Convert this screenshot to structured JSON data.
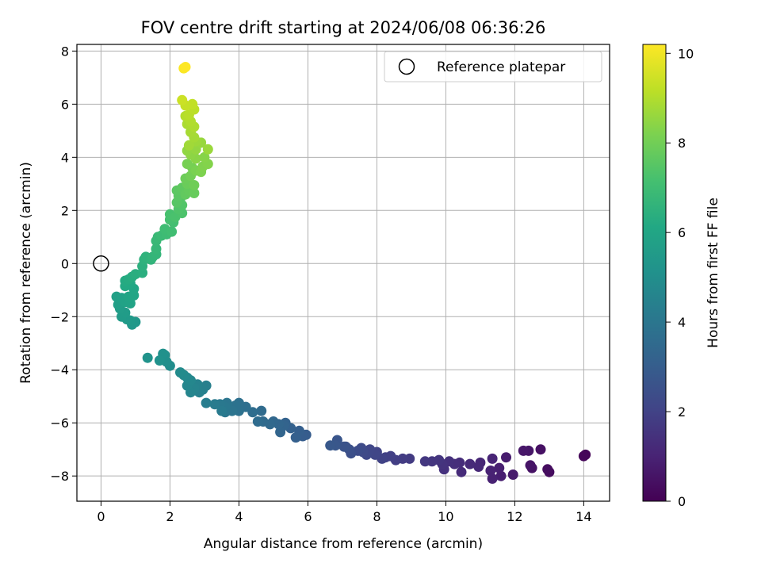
{
  "chart_data": {
    "type": "scatter",
    "title": "FOV centre drift starting at 2024/06/08 06:36:26",
    "xlabel": "Angular distance from reference (arcmin)",
    "ylabel": "Rotation from reference (arcmin)",
    "colorbar_label": "Hours from first FF file",
    "xlim": [
      -0.7,
      14.75
    ],
    "ylim": [
      -8.95,
      8.25
    ],
    "clim": [
      0,
      10.2
    ],
    "colormap": "viridis",
    "xticks": [
      "0",
      "2",
      "4",
      "6",
      "8",
      "10",
      "12",
      "14"
    ],
    "yticks": [
      "−8",
      "−6",
      "−4",
      "−2",
      "0",
      "2",
      "4",
      "6",
      "8"
    ],
    "cbar_ticks": [
      "0",
      "2",
      "4",
      "6",
      "8",
      "10"
    ],
    "grid": true,
    "legend": {
      "placement": "top-right",
      "entries": [
        "Reference platepar"
      ]
    },
    "reference_point": {
      "x": 0,
      "y": 0,
      "label": "Reference platepar"
    },
    "points": [
      [
        14.05,
        -7.2,
        0.1
      ],
      [
        14.0,
        -7.25,
        0.15
      ],
      [
        13.0,
        -7.85,
        0.3
      ],
      [
        12.95,
        -7.75,
        0.35
      ],
      [
        12.75,
        -7.0,
        0.45
      ],
      [
        12.5,
        -7.7,
        0.5
      ],
      [
        12.45,
        -7.6,
        0.55
      ],
      [
        12.4,
        -7.05,
        0.6
      ],
      [
        12.25,
        -7.05,
        0.65
      ],
      [
        11.95,
        -7.95,
        0.75
      ],
      [
        11.75,
        -7.3,
        0.8
      ],
      [
        11.6,
        -8.0,
        0.85
      ],
      [
        11.55,
        -7.7,
        0.9
      ],
      [
        11.35,
        -8.1,
        0.95
      ],
      [
        11.3,
        -7.8,
        1.0
      ],
      [
        11.35,
        -7.35,
        1.05
      ],
      [
        11.0,
        -7.5,
        1.1
      ],
      [
        10.95,
        -7.65,
        1.15
      ],
      [
        10.7,
        -7.55,
        1.2
      ],
      [
        10.45,
        -7.85,
        1.25
      ],
      [
        10.4,
        -7.5,
        1.3
      ],
      [
        10.25,
        -7.55,
        1.35
      ],
      [
        10.1,
        -7.45,
        1.4
      ],
      [
        9.95,
        -7.75,
        1.45
      ],
      [
        9.9,
        -7.55,
        1.5
      ],
      [
        9.8,
        -7.4,
        1.55
      ],
      [
        9.6,
        -7.45,
        1.6
      ],
      [
        9.4,
        -7.45,
        1.65
      ],
      [
        8.95,
        -7.35,
        1.75
      ],
      [
        8.75,
        -7.35,
        1.8
      ],
      [
        8.55,
        -7.4,
        1.85
      ],
      [
        8.4,
        -7.25,
        1.9
      ],
      [
        8.25,
        -7.3,
        1.95
      ],
      [
        8.15,
        -7.35,
        2.0
      ],
      [
        8.0,
        -7.1,
        2.05
      ],
      [
        7.95,
        -7.2,
        2.1
      ],
      [
        7.8,
        -7.0,
        2.15
      ],
      [
        7.7,
        -7.2,
        2.2
      ],
      [
        7.6,
        -7.1,
        2.25
      ],
      [
        7.55,
        -6.95,
        2.3
      ],
      [
        7.45,
        -7.05,
        2.35
      ],
      [
        7.25,
        -7.15,
        2.45
      ],
      [
        7.2,
        -7.0,
        2.5
      ],
      [
        7.1,
        -6.9,
        2.55
      ],
      [
        7.05,
        -6.9,
        2.6
      ],
      [
        6.85,
        -6.65,
        2.7
      ],
      [
        6.8,
        -6.85,
        2.75
      ],
      [
        6.65,
        -6.85,
        2.8
      ],
      [
        5.95,
        -6.45,
        2.95
      ],
      [
        5.85,
        -6.5,
        3.0
      ],
      [
        5.75,
        -6.3,
        3.05
      ],
      [
        5.65,
        -6.55,
        3.1
      ],
      [
        5.5,
        -6.2,
        3.15
      ],
      [
        5.35,
        -6.0,
        3.2
      ],
      [
        5.3,
        -6.1,
        3.25
      ],
      [
        5.2,
        -6.35,
        3.3
      ],
      [
        5.15,
        -6.05,
        3.35
      ],
      [
        5.0,
        -5.95,
        3.4
      ],
      [
        4.9,
        -6.05,
        3.45
      ],
      [
        4.7,
        -5.95,
        3.5
      ],
      [
        4.65,
        -5.55,
        3.55
      ],
      [
        4.55,
        -5.95,
        3.6
      ],
      [
        4.4,
        -5.6,
        3.65
      ],
      [
        4.2,
        -5.4,
        3.7
      ],
      [
        4.0,
        -5.25,
        3.75
      ],
      [
        4.0,
        -5.55,
        3.8
      ],
      [
        3.9,
        -5.35,
        3.85
      ],
      [
        3.8,
        -5.55,
        3.9
      ],
      [
        3.65,
        -5.25,
        3.95
      ],
      [
        3.6,
        -5.6,
        4.0
      ],
      [
        3.6,
        -5.4,
        4.05
      ],
      [
        3.45,
        -5.3,
        4.1
      ],
      [
        3.5,
        -5.55,
        4.15
      ],
      [
        3.3,
        -5.3,
        4.2
      ],
      [
        3.05,
        -5.25,
        4.3
      ],
      [
        3.05,
        -4.6,
        4.35
      ],
      [
        2.95,
        -4.75,
        4.4
      ],
      [
        2.85,
        -4.85,
        4.45
      ],
      [
        2.8,
        -4.55,
        4.5
      ],
      [
        2.7,
        -4.7,
        4.55
      ],
      [
        2.6,
        -4.85,
        4.6
      ],
      [
        2.5,
        -4.6,
        4.65
      ],
      [
        2.6,
        -4.4,
        4.7
      ],
      [
        2.5,
        -4.3,
        4.75
      ],
      [
        2.4,
        -4.2,
        4.8
      ],
      [
        2.3,
        -4.1,
        4.85
      ],
      [
        2.0,
        -3.85,
        4.95
      ],
      [
        1.9,
        -3.7,
        5.0
      ],
      [
        1.85,
        -3.45,
        5.05
      ],
      [
        1.8,
        -3.4,
        5.1
      ],
      [
        1.7,
        -3.65,
        5.15
      ],
      [
        1.35,
        -3.55,
        5.2
      ],
      [
        1.0,
        -2.2,
        5.35
      ],
      [
        0.9,
        -2.3,
        5.4
      ],
      [
        0.85,
        -2.15,
        5.45
      ],
      [
        0.75,
        -2.1,
        5.5
      ],
      [
        0.6,
        -2.0,
        5.55
      ],
      [
        0.7,
        -1.85,
        5.6
      ],
      [
        0.55,
        -1.7,
        5.65
      ],
      [
        0.5,
        -1.55,
        5.7
      ],
      [
        0.45,
        -1.25,
        5.75
      ],
      [
        0.6,
        -1.3,
        5.8
      ],
      [
        0.7,
        -1.45,
        5.85
      ],
      [
        0.85,
        -1.5,
        5.9
      ],
      [
        0.8,
        -1.25,
        5.95
      ],
      [
        0.95,
        -1.2,
        6.0
      ],
      [
        0.95,
        -0.95,
        6.05
      ],
      [
        0.85,
        -0.75,
        6.1
      ],
      [
        0.7,
        -0.85,
        6.15
      ],
      [
        0.7,
        -0.65,
        6.2
      ],
      [
        0.8,
        -0.6,
        6.25
      ],
      [
        0.9,
        -0.5,
        6.3
      ],
      [
        1.0,
        -0.4,
        6.35
      ],
      [
        1.2,
        -0.35,
        6.4
      ],
      [
        1.2,
        -0.1,
        6.45
      ],
      [
        1.25,
        0.15,
        6.5
      ],
      [
        1.3,
        0.25,
        6.55
      ],
      [
        1.45,
        0.15,
        6.6
      ],
      [
        1.5,
        0.25,
        6.65
      ],
      [
        1.6,
        0.35,
        6.7
      ],
      [
        1.6,
        0.55,
        6.75
      ],
      [
        1.6,
        0.85,
        6.8
      ],
      [
        1.65,
        1.0,
        6.85
      ],
      [
        1.75,
        1.05,
        6.9
      ],
      [
        1.9,
        1.1,
        6.95
      ],
      [
        1.85,
        1.3,
        7.0
      ],
      [
        2.05,
        1.2,
        7.05
      ],
      [
        2.1,
        1.55,
        7.1
      ],
      [
        2.0,
        1.65,
        7.15
      ],
      [
        2.0,
        1.85,
        7.2
      ],
      [
        2.15,
        1.75,
        7.25
      ],
      [
        2.35,
        1.9,
        7.3
      ],
      [
        2.25,
        2.05,
        7.35
      ],
      [
        2.35,
        2.2,
        7.4
      ],
      [
        2.3,
        2.45,
        7.45
      ],
      [
        2.2,
        2.3,
        7.5
      ],
      [
        2.25,
        2.55,
        7.55
      ],
      [
        2.2,
        2.75,
        7.6
      ],
      [
        2.35,
        2.85,
        7.65
      ],
      [
        2.45,
        2.6,
        7.7
      ],
      [
        2.55,
        2.75,
        7.75
      ],
      [
        2.7,
        2.65,
        7.8
      ],
      [
        2.5,
        3.0,
        7.85
      ],
      [
        2.45,
        3.2,
        7.9
      ],
      [
        2.7,
        2.95,
        7.95
      ],
      [
        2.6,
        3.3,
        8.0
      ],
      [
        2.65,
        3.6,
        8.05
      ],
      [
        2.5,
        3.75,
        8.1
      ],
      [
        2.75,
        3.5,
        8.15
      ],
      [
        2.9,
        3.45,
        8.2
      ],
      [
        2.95,
        3.65,
        8.25
      ],
      [
        3.1,
        3.75,
        8.3
      ],
      [
        3.0,
        4.0,
        8.35
      ],
      [
        2.75,
        3.95,
        8.4
      ],
      [
        2.6,
        4.1,
        8.45
      ],
      [
        2.5,
        4.25,
        8.5
      ],
      [
        2.75,
        4.3,
        8.55
      ],
      [
        2.9,
        4.55,
        8.6
      ],
      [
        3.1,
        4.3,
        8.65
      ],
      [
        2.75,
        4.6,
        8.7
      ],
      [
        2.55,
        4.45,
        8.75
      ],
      [
        2.7,
        4.75,
        8.8
      ],
      [
        2.6,
        4.95,
        8.85
      ],
      [
        2.5,
        5.25,
        8.9
      ],
      [
        2.7,
        5.15,
        8.95
      ],
      [
        2.6,
        5.35,
        9.0
      ],
      [
        2.45,
        5.55,
        9.05
      ],
      [
        2.55,
        5.6,
        9.1
      ],
      [
        2.7,
        5.8,
        9.15
      ],
      [
        2.65,
        6.0,
        9.25
      ],
      [
        2.45,
        5.95,
        9.3
      ],
      [
        2.35,
        6.15,
        9.4
      ],
      [
        2.4,
        7.35,
        10.15
      ],
      [
        2.45,
        7.4,
        10.2
      ]
    ]
  }
}
